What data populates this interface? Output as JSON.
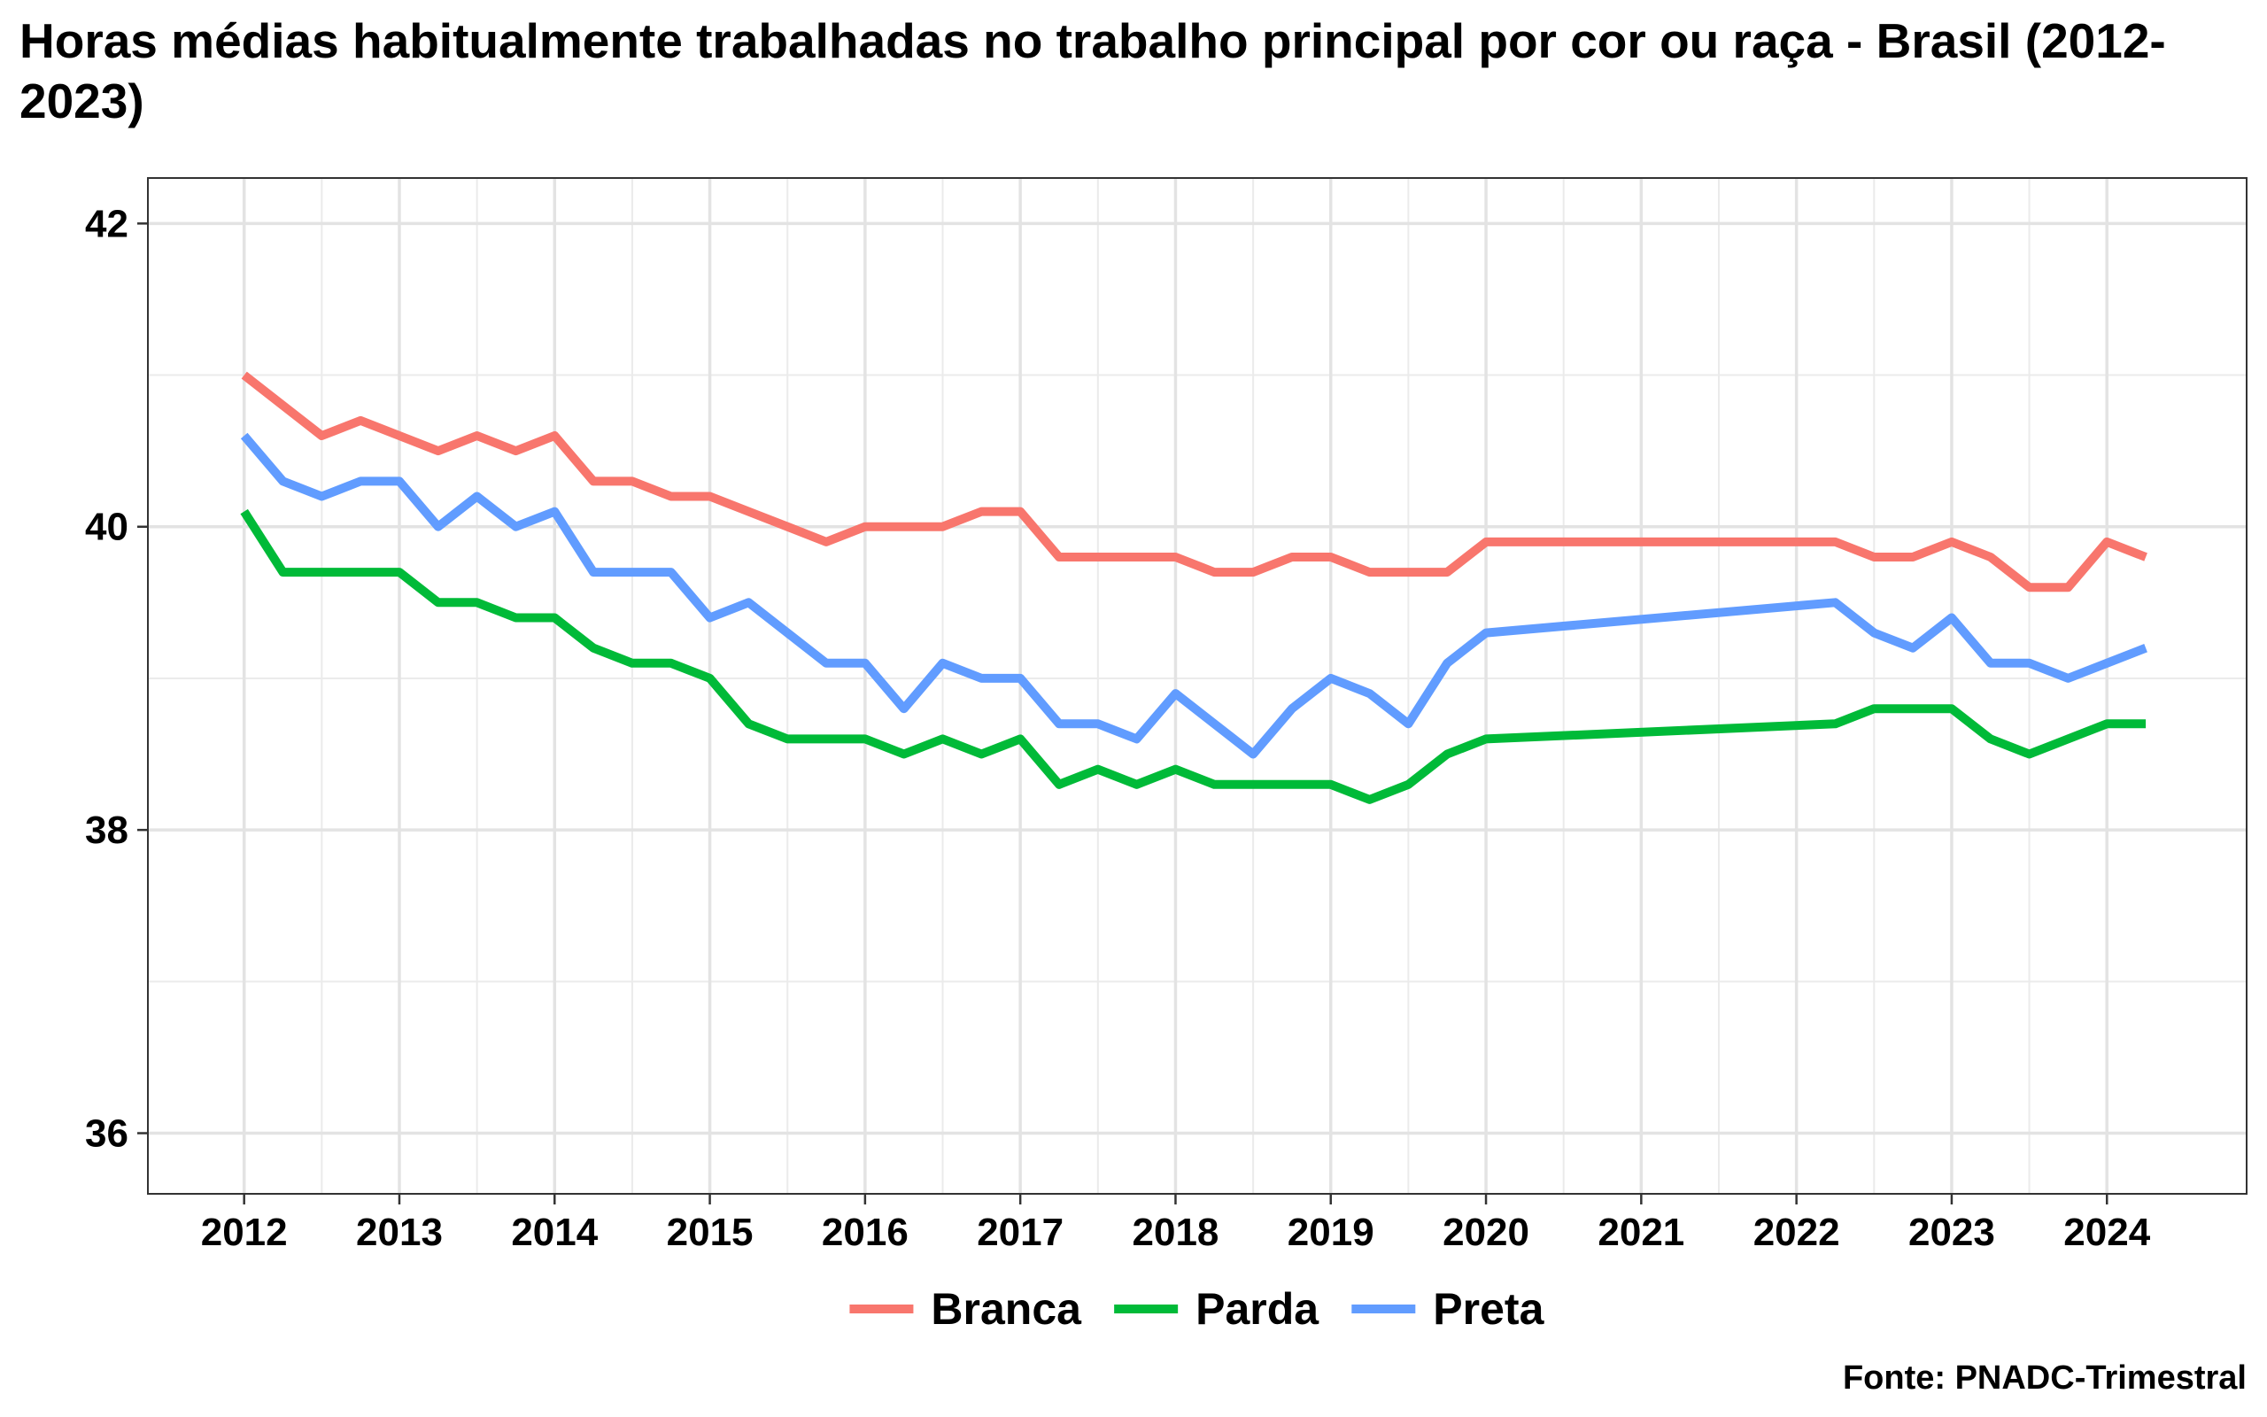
{
  "chart_data": {
    "type": "line",
    "title": "Horas médias habitualmente trabalhadas no trabalho principal por cor ou raça - Brasil (2012-2023)",
    "xlabel": "",
    "ylabel": "",
    "xlim": [
      2011.38,
      2024.9
    ],
    "ylim": [
      35.6,
      42.3
    ],
    "x_ticks": [
      2012,
      2013,
      2014,
      2015,
      2016,
      2017,
      2018,
      2019,
      2020,
      2021,
      2022,
      2023,
      2024
    ],
    "y_ticks": [
      36,
      38,
      40,
      42
    ],
    "grid": true,
    "legend_position": "bottom",
    "source": "Fonte: PNADC-Trimestral",
    "series": [
      {
        "name": "Branca",
        "color": "#F8766D",
        "x": [
          2012.0,
          2012.25,
          2012.5,
          2012.75,
          2013.0,
          2013.25,
          2013.5,
          2013.75,
          2014.0,
          2014.25,
          2014.5,
          2014.75,
          2015.0,
          2015.25,
          2015.5,
          2015.75,
          2016.0,
          2016.25,
          2016.5,
          2016.75,
          2017.0,
          2017.25,
          2017.5,
          2017.75,
          2018.0,
          2018.25,
          2018.5,
          2018.75,
          2019.0,
          2019.25,
          2019.5,
          2019.75,
          2020.0,
          2022.25,
          2022.5,
          2022.75,
          2023.0,
          2023.25,
          2023.5,
          2023.75,
          2024.0,
          2024.25
        ],
        "values": [
          41.0,
          40.8,
          40.6,
          40.7,
          40.6,
          40.5,
          40.6,
          40.5,
          40.6,
          40.3,
          40.3,
          40.2,
          40.2,
          40.1,
          40.0,
          39.9,
          40.0,
          40.0,
          40.0,
          40.1,
          40.1,
          39.8,
          39.8,
          39.8,
          39.8,
          39.7,
          39.7,
          39.8,
          39.8,
          39.7,
          39.7,
          39.7,
          39.9,
          39.9,
          39.8,
          39.8,
          39.9,
          39.8,
          39.6,
          39.6,
          39.9,
          39.8
        ]
      },
      {
        "name": "Parda",
        "color": "#00BA38",
        "x": [
          2012.0,
          2012.25,
          2012.5,
          2012.75,
          2013.0,
          2013.25,
          2013.5,
          2013.75,
          2014.0,
          2014.25,
          2014.5,
          2014.75,
          2015.0,
          2015.25,
          2015.5,
          2015.75,
          2016.0,
          2016.25,
          2016.5,
          2016.75,
          2017.0,
          2017.25,
          2017.5,
          2017.75,
          2018.0,
          2018.25,
          2018.5,
          2018.75,
          2019.0,
          2019.25,
          2019.5,
          2019.75,
          2020.0,
          2022.25,
          2022.5,
          2022.75,
          2023.0,
          2023.25,
          2023.5,
          2023.75,
          2024.0,
          2024.25
        ],
        "values": [
          40.1,
          39.7,
          39.7,
          39.7,
          39.7,
          39.5,
          39.5,
          39.4,
          39.4,
          39.2,
          39.1,
          39.1,
          39.0,
          38.7,
          38.6,
          38.6,
          38.6,
          38.5,
          38.6,
          38.5,
          38.6,
          38.3,
          38.4,
          38.3,
          38.4,
          38.3,
          38.3,
          38.3,
          38.3,
          38.2,
          38.3,
          38.5,
          38.6,
          38.7,
          38.8,
          38.8,
          38.8,
          38.6,
          38.5,
          38.6,
          38.7,
          38.7
        ]
      },
      {
        "name": "Preta",
        "color": "#619CFF",
        "x": [
          2012.0,
          2012.25,
          2012.5,
          2012.75,
          2013.0,
          2013.25,
          2013.5,
          2013.75,
          2014.0,
          2014.25,
          2014.5,
          2014.75,
          2015.0,
          2015.25,
          2015.5,
          2015.75,
          2016.0,
          2016.25,
          2016.5,
          2016.75,
          2017.0,
          2017.25,
          2017.5,
          2017.75,
          2018.0,
          2018.25,
          2018.5,
          2018.75,
          2019.0,
          2019.25,
          2019.5,
          2019.75,
          2020.0,
          2022.25,
          2022.5,
          2022.75,
          2023.0,
          2023.25,
          2023.5,
          2023.75,
          2024.0,
          2024.25
        ],
        "values": [
          40.6,
          40.3,
          40.2,
          40.3,
          40.3,
          40.0,
          40.2,
          40.0,
          40.1,
          39.7,
          39.7,
          39.7,
          39.4,
          39.5,
          39.3,
          39.1,
          39.1,
          38.8,
          39.1,
          39.0,
          39.0,
          38.7,
          38.7,
          38.6,
          38.9,
          38.7,
          38.5,
          38.8,
          39.0,
          38.9,
          38.7,
          39.1,
          39.3,
          39.5,
          39.3,
          39.2,
          39.4,
          39.1,
          39.1,
          39.0,
          39.1,
          39.2
        ]
      }
    ]
  }
}
